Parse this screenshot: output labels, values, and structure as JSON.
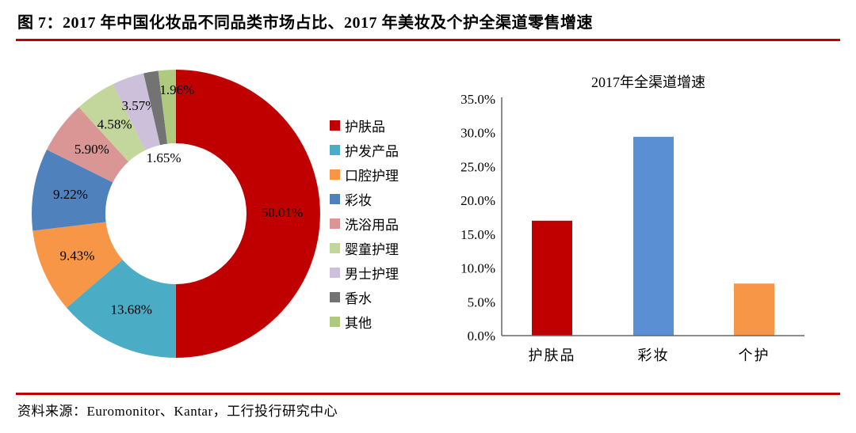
{
  "figure": {
    "title": "图 7：2017 年中国化妆品不同品类市场占比、2017 年美妆及个护全渠道零售增速",
    "source": "资料来源：Euromonitor、Kantar，工行投行研究中心"
  },
  "accent_color": "#C00000",
  "text_color": "#000000",
  "axis_color": "#666666",
  "chart_data": [
    {
      "type": "pie",
      "subtype": "donut",
      "title": "",
      "legend_position": "right",
      "start_angle_deg": 0,
      "direction": "clockwise",
      "categories": [
        "护肤品",
        "护发产品",
        "口腔护理",
        "彩妆",
        "洗浴用品",
        "婴童护理",
        "男士护理",
        "香水",
        "其他"
      ],
      "values": [
        50.01,
        13.68,
        9.43,
        9.22,
        5.9,
        4.58,
        3.57,
        1.65,
        1.96
      ],
      "labels": [
        "50.01%",
        "13.68%",
        "9.43%",
        "9.22%",
        "5.90%",
        "4.58%",
        "3.57%",
        "1.65%",
        "1.96%"
      ],
      "colors": [
        "#C00000",
        "#4BACC6",
        "#F79646",
        "#4F81BD",
        "#D99694",
        "#C3D69B",
        "#CCC0DA",
        "#737373",
        "#AFC97E"
      ]
    },
    {
      "type": "bar",
      "title": "2017年全渠道增速",
      "categories": [
        "护肤品",
        "彩妆",
        "个护"
      ],
      "values": [
        17.0,
        29.4,
        7.7
      ],
      "colors": [
        "#C00000",
        "#5B8FD4",
        "#F79646"
      ],
      "ylim": [
        0,
        35
      ],
      "ytick_step": 5,
      "ytick_labels": [
        "0.0%",
        "5.0%",
        "10.0%",
        "15.0%",
        "20.0%",
        "25.0%",
        "30.0%",
        "35.0%"
      ],
      "grid": false,
      "legend": false
    }
  ]
}
